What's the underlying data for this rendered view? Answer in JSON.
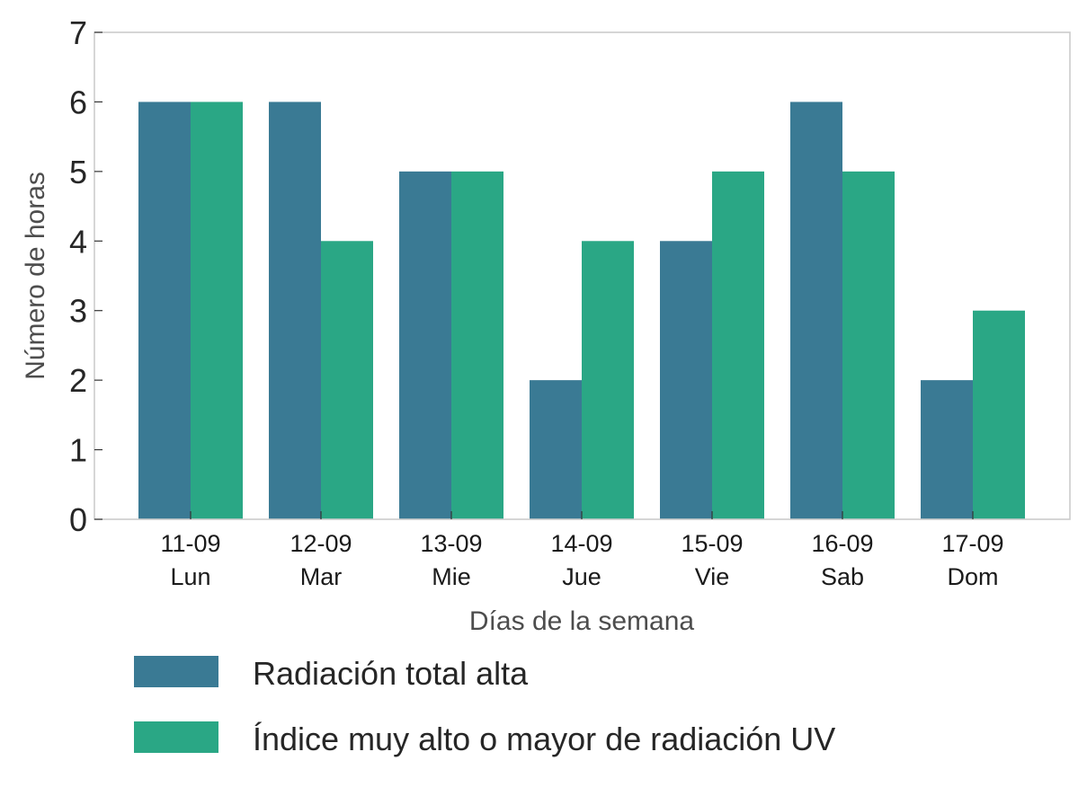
{
  "chart_data": {
    "type": "bar",
    "title": "",
    "xlabel": "Días de la semana",
    "ylabel": "Número de horas",
    "ylim": [
      0,
      7
    ],
    "yticks": [
      0,
      1,
      2,
      3,
      4,
      5,
      6,
      7
    ],
    "grid": false,
    "legend_position": "bottom",
    "categories": [
      {
        "date": "11-09",
        "day": "Lun"
      },
      {
        "date": "12-09",
        "day": "Mar"
      },
      {
        "date": "13-09",
        "day": "Mie"
      },
      {
        "date": "14-09",
        "day": "Jue"
      },
      {
        "date": "15-09",
        "day": "Vie"
      },
      {
        "date": "16-09",
        "day": "Sab"
      },
      {
        "date": "17-09",
        "day": "Dom"
      }
    ],
    "series": [
      {
        "name": "Radiación total alta",
        "color": "#3a7a94",
        "values": [
          6,
          6,
          5,
          2,
          4,
          6,
          2
        ]
      },
      {
        "name": "Índice muy alto o mayor de radiación UV",
        "color": "#2aa785",
        "values": [
          6,
          4,
          5,
          4,
          5,
          5,
          3
        ]
      }
    ]
  }
}
